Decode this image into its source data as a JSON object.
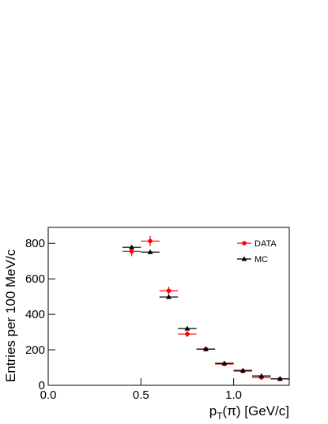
{
  "chart_data": {
    "type": "errorbar",
    "xlabel": "p",
    "xlabel_sub": "T",
    "xlabel_rest": "(π) [GeV/c]",
    "ylabel": "Entries per 100 MeV/c",
    "x": [
      0.45,
      0.55,
      0.65,
      0.75,
      0.85,
      0.95,
      1.05,
      1.15,
      1.25
    ],
    "xerr": 0.05,
    "series": [
      {
        "name": "DATA",
        "color": "#ff0000",
        "marker": "circle",
        "values": [
          755,
          813,
          533,
          289,
          204,
          120,
          80,
          44,
          36
        ],
        "errors": [
          27,
          29,
          23,
          17,
          14,
          11,
          9,
          7,
          6
        ]
      },
      {
        "name": "MC",
        "color": "#000000",
        "marker": "triangle",
        "values": [
          778,
          751,
          498,
          320,
          204,
          124,
          84,
          53,
          36
        ]
      }
    ],
    "xlim": [
      0,
      1.3
    ],
    "ylim": [
      0,
      890
    ],
    "xticks": [
      {
        "value": 0,
        "label": "0.0"
      },
      0.5,
      {
        "value": 1,
        "label": "1.0"
      }
    ],
    "yticks": [
      0,
      200,
      400,
      600,
      800
    ],
    "legend": "top-right"
  }
}
